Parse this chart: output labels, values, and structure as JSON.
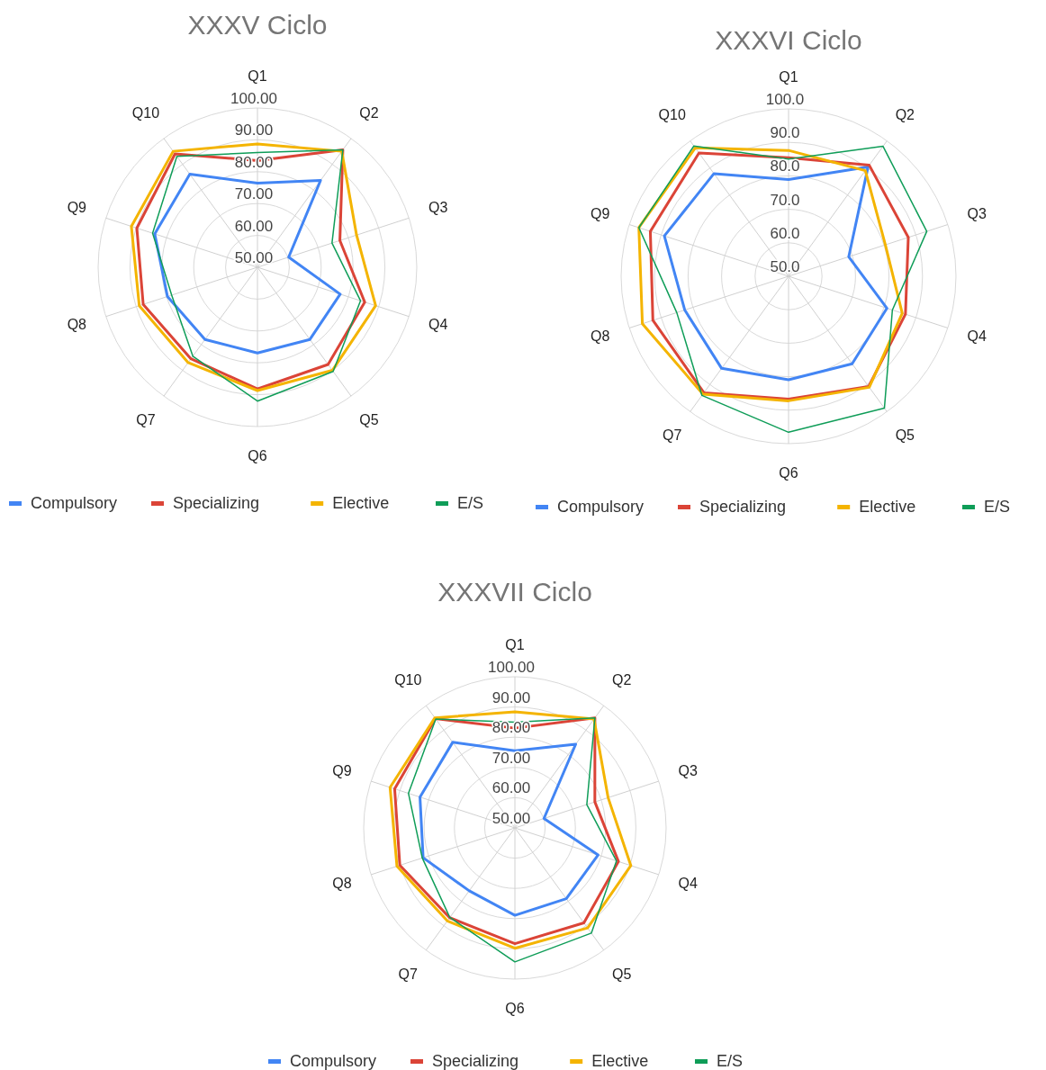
{
  "chart_data": [
    {
      "type": "radar",
      "title": "XXXV Ciclo",
      "categories": [
        "Q1",
        "Q2",
        "Q3",
        "Q4",
        "Q5",
        "Q6",
        "Q7",
        "Q8",
        "Q9",
        "Q10"
      ],
      "ylim": [
        50,
        100
      ],
      "yticks": [
        {
          "value": 50,
          "label": "50.00"
        },
        {
          "value": 60,
          "label": "60.00"
        },
        {
          "value": 70,
          "label": "70.00"
        },
        {
          "value": 80,
          "label": "80.00"
        },
        {
          "value": 90,
          "label": "90.00"
        },
        {
          "value": 100,
          "label": "100.00"
        }
      ],
      "grid": true,
      "legend": "bottom",
      "marker": "none",
      "series": [
        {
          "name": "Compulsory",
          "color": "#4285f4",
          "values": [
            76.4,
            83.7,
            60.3,
            77.3,
            78,
            76.9,
            78,
            79.7,
            83.9,
            86.1
          ]
        },
        {
          "name": "Specializing",
          "color": "#db4437",
          "values": [
            83.5,
            95.6,
            77.2,
            85.4,
            87.7,
            88.2,
            85.5,
            87.7,
            89.8,
            94
          ]
        },
        {
          "name": "Elective",
          "color": "#f4b400",
          "values": [
            88.7,
            95,
            82.7,
            89,
            90,
            88.7,
            87,
            89,
            91.6,
            95
          ]
        },
        {
          "name": "E/S",
          "color": "#0f9d58",
          "values": [
            86,
            95.6,
            74.6,
            84,
            90.4,
            92,
            84.5,
            78.3,
            84.6,
            93
          ]
        }
      ]
    },
    {
      "type": "radar",
      "title": "XXXVI Ciclo",
      "categories": [
        "Q1",
        "Q2",
        "Q3",
        "Q4",
        "Q5",
        "Q6",
        "Q7",
        "Q8",
        "Q9",
        "Q10"
      ],
      "ylim": [
        50,
        100
      ],
      "yticks": [
        {
          "value": 50,
          "label": "50.0"
        },
        {
          "value": 60,
          "label": "60.0"
        },
        {
          "value": 70,
          "label": "70.0"
        },
        {
          "value": 80,
          "label": "80.0"
        },
        {
          "value": 90,
          "label": "90.0"
        },
        {
          "value": 100,
          "label": "100.0"
        }
      ],
      "grid": true,
      "legend": "bottom",
      "marker": "none",
      "series": [
        {
          "name": "Compulsory",
          "color": "#4285f4",
          "values": [
            78.9,
            90.4,
            68.9,
            80.9,
            82.3,
            80.9,
            84,
            82.6,
            89,
            87.9
          ]
        },
        {
          "name": "Specializing",
          "color": "#db4437",
          "values": [
            85.4,
            91,
            87.6,
            86.7,
            90.7,
            86.7,
            93,
            92.6,
            93.4,
            95.5
          ]
        },
        {
          "name": "Elective",
          "color": "#f4b400",
          "values": [
            87.6,
            89,
            80.4,
            85.7,
            91,
            87.2,
            93.5,
            95.9,
            97,
            97.4
          ]
        },
        {
          "name": "E/S",
          "color": "#0f9d58",
          "values": [
            85,
            98,
            93.4,
            82.6,
            98.7,
            96.6,
            94,
            85.1,
            97,
            98.1
          ]
        }
      ]
    },
    {
      "type": "radar",
      "title": "XXXVII Ciclo",
      "categories": [
        "Q1",
        "Q2",
        "Q3",
        "Q4",
        "Q5",
        "Q6",
        "Q7",
        "Q8",
        "Q9",
        "Q10"
      ],
      "ylim": [
        50,
        100
      ],
      "yticks": [
        {
          "value": 50,
          "label": "50.00"
        },
        {
          "value": 60,
          "label": "60.00"
        },
        {
          "value": 70,
          "label": "70.00"
        },
        {
          "value": 80,
          "label": "80.00"
        },
        {
          "value": 90,
          "label": "90.00"
        },
        {
          "value": 100,
          "label": "100.00"
        }
      ],
      "grid": true,
      "legend": "bottom",
      "marker": "none",
      "series": [
        {
          "name": "Compulsory",
          "color": "#4285f4",
          "values": [
            75.5,
            84.2,
            60.1,
            78.9,
            78.9,
            78.9,
            75.7,
            81.9,
            83,
            85
          ]
        },
        {
          "name": "Specializing",
          "color": "#db4437",
          "values": [
            83,
            95,
            77.8,
            86,
            88.8,
            88.3,
            86.7,
            90,
            91.8,
            94.7
          ]
        },
        {
          "name": "Elective",
          "color": "#f4b400",
          "values": [
            88.4,
            94.5,
            82.4,
            90.3,
            90.9,
            89.8,
            88,
            91,
            93.4,
            95
          ]
        },
        {
          "name": "E/S",
          "color": "#0f9d58",
          "values": [
            85,
            95,
            75,
            85.3,
            93,
            94.3,
            86.6,
            82.2,
            87,
            94.5
          ]
        }
      ]
    }
  ]
}
